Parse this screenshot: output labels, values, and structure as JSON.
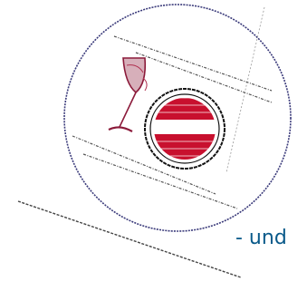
{
  "caption": {
    "text": "- und"
  },
  "seal": {
    "icon": "wine-glass-icon",
    "emblem": "red-white-red-stripes-icon"
  },
  "colors": {
    "caption": "#0a5a8a",
    "ring": "#3a3a7a",
    "wine": "#8b1a3a",
    "stripe_red": "#c8102e",
    "emblem_ring": "#111111",
    "hatching": "#555555"
  }
}
